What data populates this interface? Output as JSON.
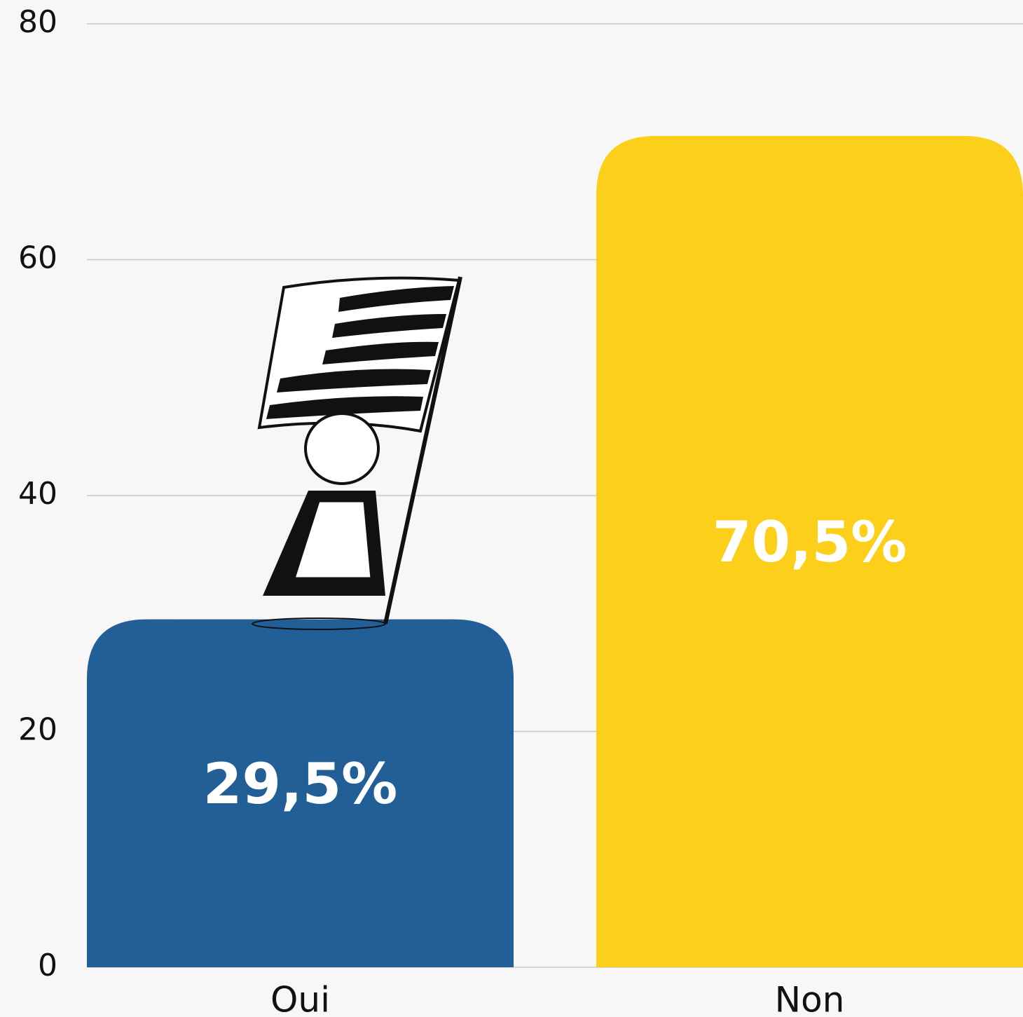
{
  "chart_data": {
    "type": "bar",
    "categories": [
      "Oui",
      "Non"
    ],
    "values": [
      29.5,
      70.5
    ],
    "value_labels": [
      "29,5%",
      "70,5%"
    ],
    "colors": [
      "#235f97",
      "#fcd01a"
    ],
    "ylim": [
      0,
      80
    ],
    "yticks": [
      0,
      20,
      40,
      60,
      80
    ],
    "grid": true
  }
}
